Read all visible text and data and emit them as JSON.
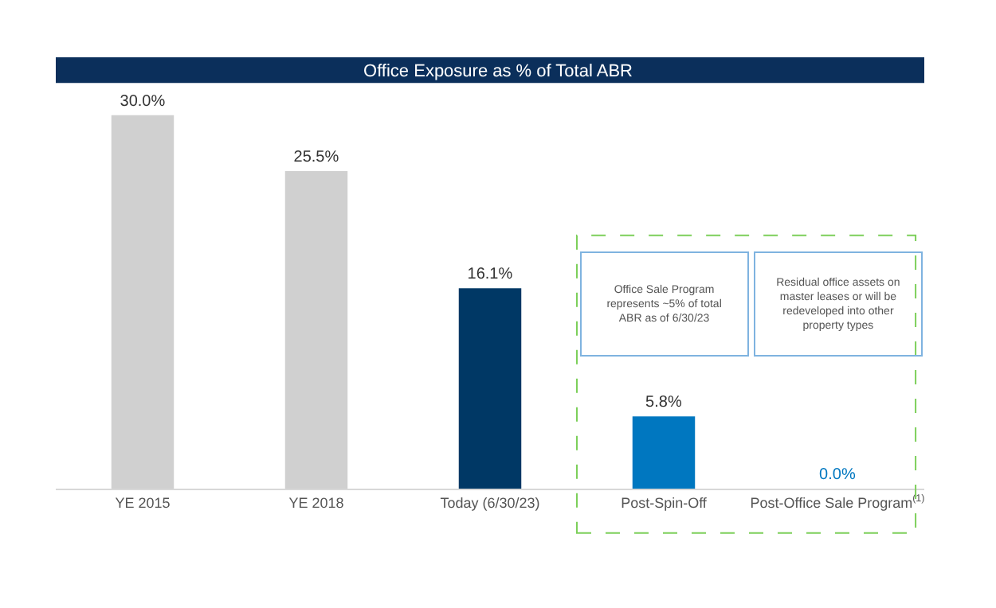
{
  "chart_data": {
    "type": "bar",
    "title": "Office Exposure as % of Total ABR",
    "categories": [
      "YE 2015",
      "YE 2018",
      "Today (6/30/23)",
      "Post-Spin-Off",
      "Post-Office Sale Program$^{(1)}$"
    ],
    "values": [
      30.0,
      25.5,
      16.1,
      5.8,
      0.0
    ],
    "colors": [
      "#d0d0d0",
      "#d0d0d0",
      "#003865",
      "#0077c0",
      "#0077c0"
    ],
    "value_labels": [
      "30.0%",
      "25.5%",
      "16.1%",
      "5.8%",
      "0.0%"
    ],
    "tick_labels": "x",
    "annotations": [
      "Office Sale Program\nrepresents ~5% of total\nABR as of 6/30/23",
      "Residual office assets on\nmaster leases or will be\nredeveloped into other\nproperty types"
    ]
  }
}
